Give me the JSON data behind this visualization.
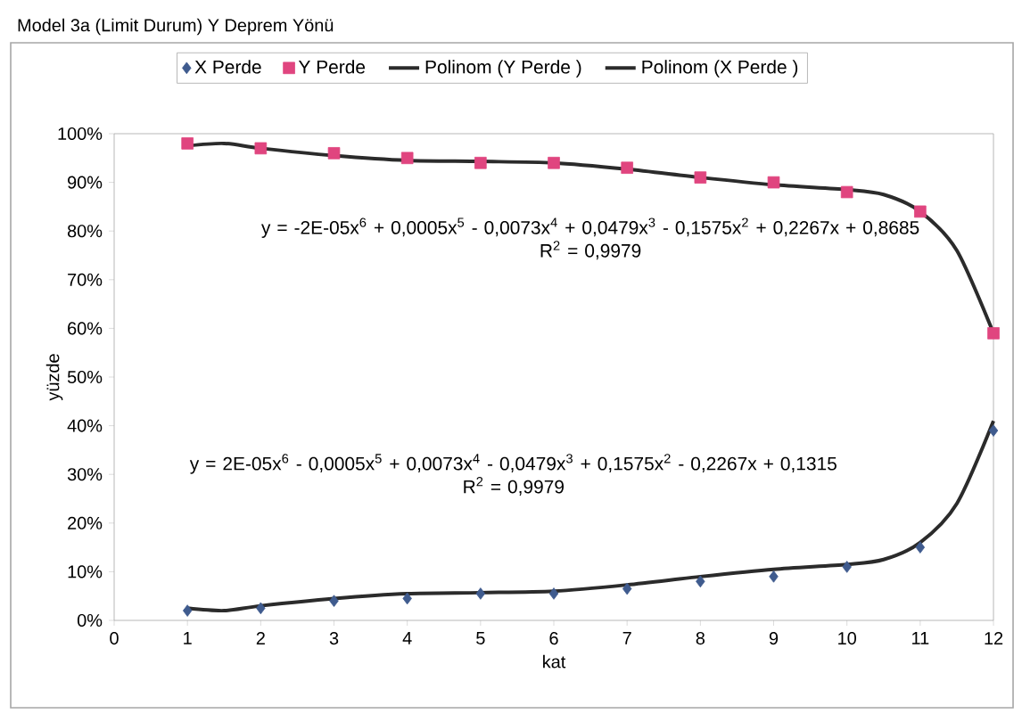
{
  "chart_data": {
    "type": "scatter",
    "title": "Model 3a (Limit Durum) Y Deprem Yönü",
    "xlabel": "kat",
    "ylabel": "yüzde",
    "x": [
      1,
      2,
      3,
      4,
      5,
      6,
      7,
      8,
      9,
      10,
      11,
      12
    ],
    "series": [
      {
        "name": "X Perde",
        "marker": "diamond",
        "color": "#3f5b8e",
        "values": [
          2,
          2.5,
          4,
          4.5,
          5.5,
          5.5,
          6.5,
          8,
          9,
          11,
          15,
          39
        ]
      },
      {
        "name": "Y Perde",
        "marker": "square",
        "color": "#e0457f",
        "values": [
          98,
          97,
          96,
          95,
          94,
          94,
          93,
          91,
          90,
          88,
          84,
          59
        ]
      },
      {
        "name": "Polinom (Y Perde )",
        "type": "line",
        "color": "#2b2b2b",
        "x": [
          1,
          1.5,
          2,
          3,
          4,
          5,
          6,
          7,
          8,
          9,
          10,
          10.5,
          11,
          11.5,
          12
        ],
        "values": [
          97.5,
          98,
          97,
          95.5,
          94.5,
          94.3,
          94,
          92.7,
          91,
          89.5,
          88.5,
          87.5,
          84,
          76,
          59
        ]
      },
      {
        "name": "Polinom (X Perde )",
        "type": "line",
        "color": "#2b2b2b",
        "x": [
          1,
          1.5,
          2,
          3,
          4,
          5,
          6,
          7,
          8,
          9,
          10,
          10.5,
          11,
          11.5,
          12
        ],
        "values": [
          2.5,
          2,
          3,
          4.5,
          5.5,
          5.7,
          6,
          7.3,
          9,
          10.5,
          11.5,
          12.5,
          16,
          24,
          41
        ]
      }
    ],
    "annotations": [
      "y = -2E-05x$^{6}$ + 0,0005x$^{5}$ - 0,0073x$^{4}$ + 0,0479x$^{3}$ - 0,1575x$^{2}$ + 0,2267x + 0,8685",
      "R$^{2}$ = 0,9979",
      "y = 2E-05x$^{6}$ - 0,0005x$^{5}$ + 0,0073x$^{4}$ - 0,0479x$^{3}$ + 0,1575x$^{2}$ - 0,2267x + 0,1315",
      "R$^{2}$ = 0,9979"
    ],
    "xlim": [
      0,
      12
    ],
    "xticks": [
      0,
      1,
      2,
      3,
      4,
      5,
      6,
      7,
      8,
      9,
      10,
      11,
      12
    ],
    "ylim": [
      0,
      100
    ],
    "yticks": [
      {
        "value": 0,
        "label": "0%"
      },
      {
        "value": 10,
        "label": "10%"
      },
      {
        "value": 20,
        "label": "20%"
      },
      {
        "value": 30,
        "label": "30%"
      },
      {
        "value": 40,
        "label": "40%"
      },
      {
        "value": 50,
        "label": "50%"
      },
      {
        "value": 60,
        "label": "60%"
      },
      {
        "value": 70,
        "label": "70%"
      },
      {
        "value": 80,
        "label": "80%"
      },
      {
        "value": 90,
        "label": "90%"
      },
      {
        "value": 100,
        "label": "100%"
      }
    ],
    "legend": "top",
    "grid": false
  }
}
